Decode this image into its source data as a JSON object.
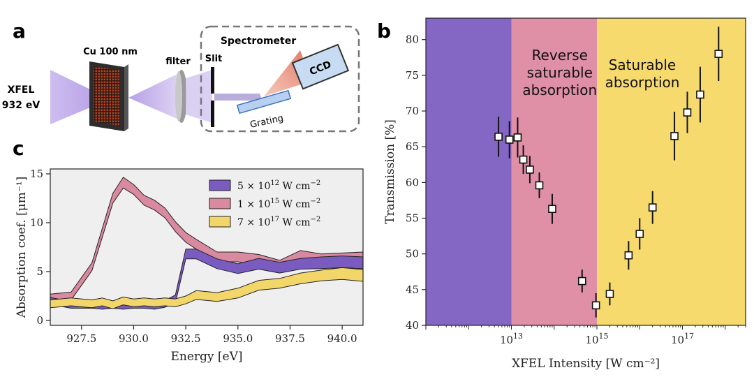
{
  "panels": {
    "a": "a",
    "b": "b",
    "c": "c"
  },
  "schematic": {
    "source_line1": "XFEL",
    "source_line2": "932 eV",
    "sample": "Cu 100 nm",
    "filter": "filter",
    "slit": "Slit",
    "spectrometer": "Spectrometer",
    "ccd": "CCD",
    "grating": "Grating"
  },
  "colors": {
    "purple": "#8466c4",
    "pink": "#df8fa6",
    "yellow": "#f7da6e",
    "series_purple": "#7a5cc0",
    "series_pink": "#d98aa0",
    "series_yellow": "#f2d66a",
    "plot_bg": "#efefef"
  },
  "chart_data": [
    {
      "panel": "b",
      "type": "scatter",
      "xscale": "log",
      "xlabel": "XFEL Intensity [W cm⁻²]",
      "ylabel": "Transmission [%]",
      "xlim": [
        100000000000.0,
        3e+18
      ],
      "ylim": [
        40,
        83
      ],
      "xticks": [
        {
          "value": 10000000000000.0,
          "base": "10",
          "exp": "13"
        },
        {
          "value": 1000000000000000.0,
          "base": "10",
          "exp": "15"
        },
        {
          "value": 1e+17,
          "base": "10",
          "exp": "17"
        }
      ],
      "yticks": [
        40,
        45,
        50,
        55,
        60,
        65,
        70,
        75,
        80
      ],
      "regions": [
        {
          "from": 100000000000.0,
          "to": 10000000000000.0,
          "color": "purple",
          "label_lines": []
        },
        {
          "from": 10000000000000.0,
          "to": 1000000000000000.0,
          "color": "pink",
          "label_lines": [
            "Reverse",
            "saturable",
            "absorption"
          ]
        },
        {
          "from": 1000000000000000.0,
          "to": 3e+18,
          "color": "yellow",
          "label_lines": [
            "Saturable",
            "absorption"
          ]
        }
      ],
      "points": [
        {
          "x": 5000000000000.0,
          "y": 66.4,
          "err": 2.8
        },
        {
          "x": 9000000000000.0,
          "y": 66.0,
          "err": 2.6
        },
        {
          "x": 14000000000000.0,
          "y": 66.3,
          "err": 2.8
        },
        {
          "x": 19000000000000.0,
          "y": 63.2,
          "err": 2.0
        },
        {
          "x": 27000000000000.0,
          "y": 61.8,
          "err": 1.9
        },
        {
          "x": 45000000000000.0,
          "y": 59.6,
          "err": 1.8
        },
        {
          "x": 90000000000000.0,
          "y": 56.3,
          "err": 2.1
        },
        {
          "x": 450000000000000.0,
          "y": 46.2,
          "err": 1.6
        },
        {
          "x": 950000000000000.0,
          "y": 42.8,
          "err": 1.7
        },
        {
          "x": 2000000000000000.0,
          "y": 44.4,
          "err": 1.6
        },
        {
          "x": 5500000000000000.0,
          "y": 49.8,
          "err": 2.0
        },
        {
          "x": 1e+16,
          "y": 52.8,
          "err": 2.2
        },
        {
          "x": 2e+16,
          "y": 56.5,
          "err": 2.3
        },
        {
          "x": 6.5e+16,
          "y": 66.5,
          "err": 3.4
        },
        {
          "x": 1.3e+17,
          "y": 69.8,
          "err": 2.9
        },
        {
          "x": 2.6e+17,
          "y": 72.3,
          "err": 3.9
        },
        {
          "x": 7e+17,
          "y": 78.0,
          "err": 3.8
        }
      ]
    },
    {
      "panel": "c",
      "type": "area",
      "xlabel": "Energy [eV]",
      "ylabel": "Absorption coef. [μm⁻¹]",
      "xlim": [
        926,
        941
      ],
      "ylim": [
        -0.5,
        15.5
      ],
      "xticks": [
        "927.5",
        "930.0",
        "932.5",
        "935.0",
        "937.5",
        "940.0"
      ],
      "xtick_values": [
        927.5,
        930.0,
        932.5,
        935.0,
        937.5,
        940.0
      ],
      "yticks": [
        0,
        5,
        10,
        15
      ],
      "legend_position": "top-right",
      "x": [
        926,
        927,
        928,
        928.5,
        929,
        929.5,
        930,
        930.5,
        931,
        931.5,
        932,
        932.5,
        933,
        934,
        935,
        936,
        937,
        938,
        939,
        940,
        941
      ],
      "series": [
        {
          "name_prefix": "5 × 10",
          "name_exp": "12",
          "name_suffix": " W cm",
          "name_unit_exp": "−2",
          "color": "series_purple",
          "values": [
            2.0,
            1.6,
            1.6,
            1.5,
            1.6,
            1.5,
            1.6,
            1.6,
            1.5,
            1.7,
            2.2,
            6.8,
            6.8,
            5.8,
            5.3,
            5.8,
            5.4,
            5.8,
            5.9,
            6.0,
            5.9
          ],
          "band": [
            0.35,
            0.35,
            0.35,
            0.35,
            0.35,
            0.35,
            0.35,
            0.35,
            0.35,
            0.35,
            0.4,
            0.5,
            0.5,
            0.5,
            0.5,
            0.55,
            0.55,
            0.55,
            0.6,
            0.6,
            0.6
          ]
        },
        {
          "name_prefix": "1 × 10",
          "name_exp": "15",
          "name_suffix": " W cm",
          "name_unit_exp": "−2",
          "color": "series_pink",
          "values": [
            2.3,
            2.5,
            5.5,
            9.0,
            12.5,
            14.1,
            13.4,
            12.3,
            11.8,
            11.0,
            9.6,
            8.5,
            7.8,
            6.5,
            6.5,
            6.2,
            5.6,
            6.6,
            6.2,
            6.3,
            6.4
          ],
          "band": [
            0.4,
            0.4,
            0.4,
            0.45,
            0.5,
            0.55,
            0.5,
            0.5,
            0.5,
            0.5,
            0.5,
            0.5,
            0.5,
            0.5,
            0.5,
            0.55,
            0.55,
            0.55,
            0.6,
            0.6,
            0.6
          ]
        },
        {
          "name_prefix": "7 × 10",
          "name_exp": "17",
          "name_suffix": " W cm",
          "name_unit_exp": "−2",
          "color": "series_yellow",
          "values": [
            1.7,
            1.9,
            1.7,
            1.9,
            1.6,
            2.0,
            1.8,
            1.9,
            1.8,
            1.9,
            1.8,
            2.1,
            2.6,
            2.4,
            2.8,
            3.6,
            3.8,
            4.3,
            4.6,
            4.8,
            4.6
          ],
          "band": [
            0.4,
            0.4,
            0.4,
            0.4,
            0.4,
            0.4,
            0.4,
            0.4,
            0.4,
            0.4,
            0.4,
            0.4,
            0.45,
            0.45,
            0.5,
            0.5,
            0.5,
            0.55,
            0.55,
            0.6,
            0.6
          ]
        }
      ]
    }
  ]
}
